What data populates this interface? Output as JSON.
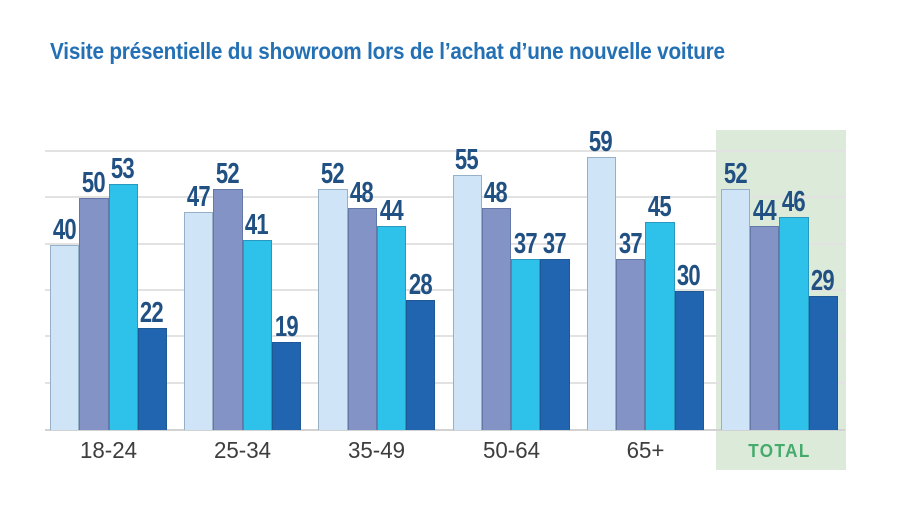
{
  "chart_data": {
    "type": "bar",
    "title": "Visite présentielle du showroom lors de l’achat d’une nouvelle voiture",
    "title_color": "#2470b5",
    "categories": [
      "18-24",
      "25-34",
      "35-49",
      "50-64",
      "65+",
      "TOTAL"
    ],
    "series": [
      {
        "name": "light-blue",
        "color": "#cfe5f7",
        "values": [
          40,
          47,
          52,
          55,
          59,
          52
        ]
      },
      {
        "name": "slate-blue",
        "color": "#8493c6",
        "values": [
          50,
          52,
          48,
          48,
          37,
          44
        ]
      },
      {
        "name": "cyan",
        "color": "#2ec1e9",
        "values": [
          53,
          41,
          44,
          37,
          45,
          46
        ]
      },
      {
        "name": "dark-blue",
        "color": "#2164af",
        "values": [
          22,
          19,
          28,
          37,
          30,
          29
        ]
      }
    ],
    "value_label_color": "#215083",
    "category_label_color": "#3d3d3d",
    "ylim": [
      0,
      62.6
    ],
    "gridline_values": [
      10,
      20,
      30,
      40,
      50,
      60
    ],
    "gridline_color": "#e2e2e2",
    "axis_line_color": "#d2d2d2",
    "legend_position": "none",
    "grid": "horizontal",
    "highlight": {
      "category": "TOTAL",
      "panel_color": "#dcead9",
      "label_color": "#44ab6c"
    }
  }
}
